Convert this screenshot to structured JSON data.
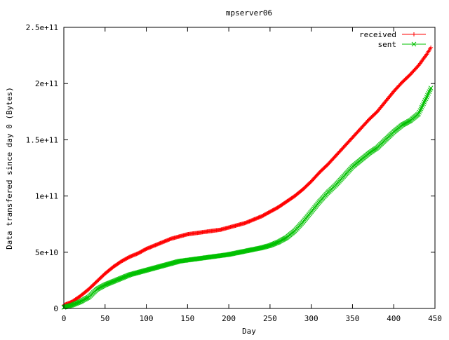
{
  "chart_data": {
    "type": "line",
    "title": "mpserver06",
    "xlabel": "Day",
    "ylabel": "Data transfered since day 0 (Bytes)",
    "xlim": [
      0,
      450
    ],
    "ylim": [
      0,
      250000000000
    ],
    "x_ticks": [
      0,
      50,
      100,
      150,
      200,
      250,
      300,
      350,
      400,
      450
    ],
    "x_tick_labels": [
      "0",
      "50",
      "100",
      "150",
      "200",
      "250",
      "300",
      "350",
      "400",
      "450"
    ],
    "y_ticks": [
      0,
      50000000000,
      100000000000,
      150000000000,
      200000000000,
      250000000000
    ],
    "y_tick_labels": [
      "0",
      "5e+10",
      "1e+11",
      "1.5e+11",
      "2e+11",
      "2.5e+11"
    ],
    "grid": false,
    "legend_position": "top-right",
    "series": [
      {
        "name": "received",
        "color": "#ff0000",
        "marker": "+",
        "x": [
          0,
          10,
          20,
          30,
          40,
          50,
          60,
          70,
          80,
          90,
          100,
          110,
          120,
          130,
          140,
          150,
          160,
          170,
          180,
          190,
          200,
          210,
          220,
          230,
          240,
          250,
          260,
          270,
          280,
          290,
          300,
          310,
          320,
          330,
          340,
          350,
          360,
          370,
          380,
          390,
          400,
          410,
          420,
          430,
          440,
          445
        ],
        "y": [
          3000000000,
          6000000000,
          11000000000,
          17000000000,
          24000000000,
          31000000000,
          37000000000,
          42000000000,
          46000000000,
          49000000000,
          53000000000,
          56000000000,
          59000000000,
          62000000000,
          64000000000,
          66000000000,
          67000000000,
          68000000000,
          69000000000,
          70000000000,
          72000000000,
          74000000000,
          76000000000,
          79000000000,
          82000000000,
          86000000000,
          90000000000,
          95000000000,
          100000000000,
          106000000000,
          113000000000,
          121000000000,
          128000000000,
          136000000000,
          144000000000,
          152000000000,
          160000000000,
          168000000000,
          175000000000,
          184000000000,
          193000000000,
          201000000000,
          208000000000,
          216000000000,
          226000000000,
          232000000000
        ]
      },
      {
        "name": "sent",
        "color": "#00c000",
        "marker": "x",
        "x": [
          0,
          10,
          20,
          30,
          40,
          50,
          60,
          70,
          80,
          90,
          100,
          110,
          120,
          130,
          140,
          150,
          160,
          170,
          180,
          190,
          200,
          210,
          220,
          230,
          240,
          250,
          260,
          270,
          280,
          290,
          300,
          310,
          320,
          330,
          340,
          350,
          360,
          370,
          380,
          390,
          400,
          410,
          420,
          430,
          440,
          445
        ],
        "y": [
          1000000000,
          3000000000,
          6000000000,
          10000000000,
          17000000000,
          21000000000,
          24000000000,
          27000000000,
          30000000000,
          32000000000,
          34000000000,
          36000000000,
          38000000000,
          40000000000,
          42000000000,
          43000000000,
          44000000000,
          45000000000,
          46000000000,
          47000000000,
          48000000000,
          49500000000,
          51000000000,
          52500000000,
          54000000000,
          56000000000,
          59000000000,
          63000000000,
          69000000000,
          77000000000,
          86000000000,
          95000000000,
          103000000000,
          110000000000,
          118000000000,
          126000000000,
          132000000000,
          138000000000,
          143000000000,
          150000000000,
          157000000000,
          163000000000,
          167000000000,
          173000000000,
          188000000000,
          196000000000
        ]
      }
    ]
  }
}
